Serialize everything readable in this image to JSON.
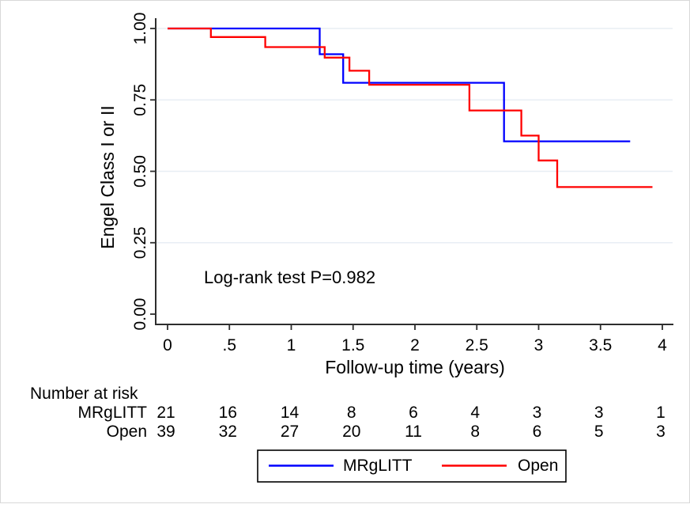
{
  "chart_data": {
    "type": "line",
    "subtype": "kaplan_meier_step",
    "title": "",
    "xlabel": "Follow-up time (years)",
    "ylabel": "Engel Class I or II",
    "xlim": [
      0,
      4.1
    ],
    "ylim": [
      0,
      1.03
    ],
    "x_ticks": [
      0,
      0.5,
      1,
      1.5,
      2,
      2.5,
      3,
      3.5,
      4
    ],
    "x_tick_labels": [
      "0",
      ".5",
      "1",
      "1.5",
      "2",
      "2.5",
      "3",
      "3.5",
      "4"
    ],
    "y_ticks": [
      0,
      0.25,
      0.5,
      0.75,
      1
    ],
    "y_tick_labels": [
      "0.00",
      "0.25",
      "0.50",
      "0.75",
      "1.00"
    ],
    "grid": {
      "horizontal_at": [
        0.25,
        0.5,
        0.75,
        1.0
      ],
      "color": "#e8eef4",
      "vertical": false
    },
    "annotation": {
      "text": "Log-rank test P=0.982",
      "p_value": "0.982"
    },
    "legend": {
      "position": "bottom",
      "border": true,
      "entries": [
        "MRgLITT",
        "Open"
      ]
    },
    "series": [
      {
        "name": "MRgLITT",
        "color": "#0000ff",
        "steps": [
          [
            0,
            1.0
          ],
          [
            1.23,
            1.0
          ],
          [
            1.23,
            0.91
          ],
          [
            1.42,
            0.91
          ],
          [
            1.42,
            0.81
          ],
          [
            2.72,
            0.81
          ],
          [
            2.72,
            0.605
          ],
          [
            3.74,
            0.605
          ]
        ]
      },
      {
        "name": "Open",
        "color": "#ff0000",
        "steps": [
          [
            0,
            1.0
          ],
          [
            0.35,
            1.0
          ],
          [
            0.35,
            0.97
          ],
          [
            0.79,
            0.97
          ],
          [
            0.79,
            0.935
          ],
          [
            1.27,
            0.935
          ],
          [
            1.27,
            0.898
          ],
          [
            1.47,
            0.898
          ],
          [
            1.47,
            0.852
          ],
          [
            1.63,
            0.852
          ],
          [
            1.63,
            0.803
          ],
          [
            2.44,
            0.803
          ],
          [
            2.44,
            0.713
          ],
          [
            2.86,
            0.713
          ],
          [
            2.86,
            0.625
          ],
          [
            3.0,
            0.625
          ],
          [
            3.0,
            0.538
          ],
          [
            3.15,
            0.538
          ],
          [
            3.15,
            0.445
          ],
          [
            3.92,
            0.445
          ]
        ]
      }
    ],
    "risk_table": {
      "title": "Number at risk",
      "time_points": [
        0,
        0.5,
        1,
        1.5,
        2,
        2.5,
        3,
        3.5,
        4
      ],
      "rows": [
        {
          "label": "MRgLITT",
          "counts": [
            "21",
            "16",
            "14",
            "8",
            "6",
            "4",
            "3",
            "3",
            "1"
          ]
        },
        {
          "label": "Open",
          "counts": [
            "39",
            "32",
            "27",
            "20",
            "11",
            "8",
            "6",
            "5",
            "3"
          ]
        }
      ]
    }
  }
}
